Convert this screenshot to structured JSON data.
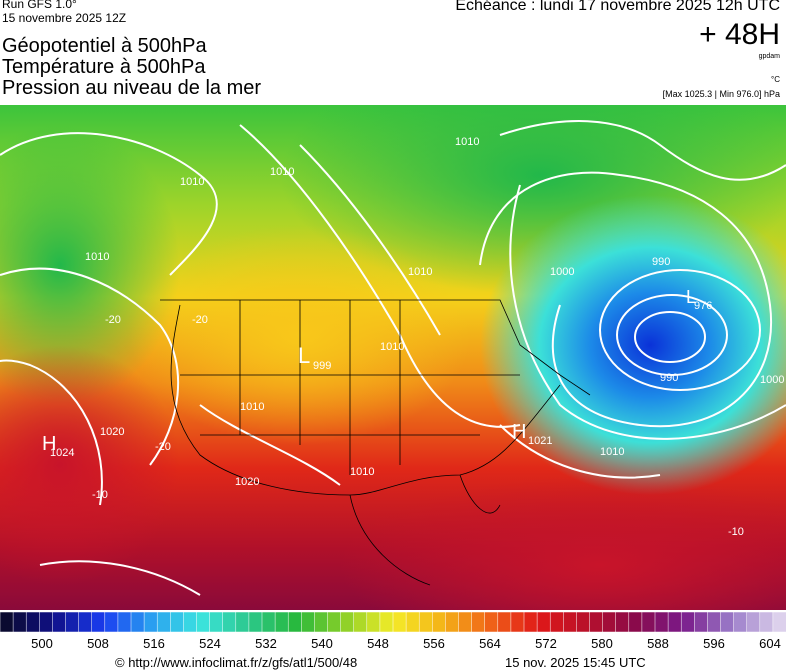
{
  "header": {
    "run": "Run GFS 1.0°",
    "run_time": "15 novembre 2025 12Z",
    "forecast": "Echéance : lundi 17 novembre 2025 12h UTC",
    "lead": "+ 48H",
    "unit_gpdam": "gpdam",
    "unit_c": "°C",
    "pressure_range": "[Max 1025.3 | Min 976.0] hPa",
    "titles": [
      "Géopotentiel à 500hPa",
      "Température à 500hPa",
      "Pression au niveau de la mer"
    ]
  },
  "map": {
    "labels": [
      "1010",
      "1010",
      "1010",
      "1010",
      "1010",
      "1010",
      "1010",
      "1010",
      "1020",
      "1020",
      "990",
      "990",
      "1000",
      "1000",
      "1010",
      "L",
      "999",
      "L",
      "976",
      "H",
      "1024",
      "H",
      "1021",
      "-20",
      "-20",
      "-20",
      "-10",
      "-10"
    ]
  },
  "legend": {
    "ticks": [
      500,
      508,
      516,
      524,
      532,
      540,
      548,
      556,
      564,
      572,
      580,
      588,
      596,
      604
    ]
  },
  "footer": {
    "url": "© http://www.infoclimat.fr/z/gfs/atl1/500/48",
    "timestamp": "15 nov. 2025 15:45 UTC"
  }
}
